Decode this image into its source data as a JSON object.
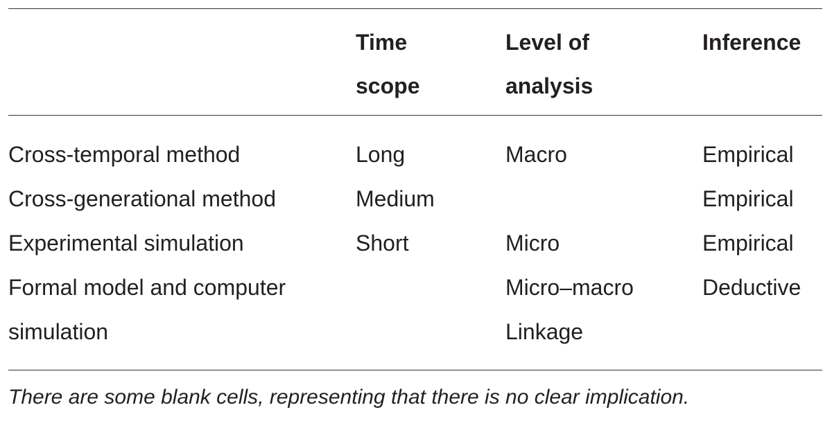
{
  "table": {
    "header": [
      null,
      "Time scope",
      "Level of analysis",
      "Inference"
    ],
    "rows": [
      [
        "Cross-temporal method",
        "Long",
        "Macro",
        "Empirical"
      ],
      [
        "Cross-generational method",
        "Medium",
        null,
        "Empirical"
      ],
      [
        "Experimental simulation",
        "Short",
        "Micro",
        "Empirical"
      ],
      [
        "Formal model and computer simulation",
        null,
        "Micro–macro Linkage",
        "Deductive"
      ]
    ],
    "footnote": "There are some blank cells, representing that there is no clear implication."
  }
}
